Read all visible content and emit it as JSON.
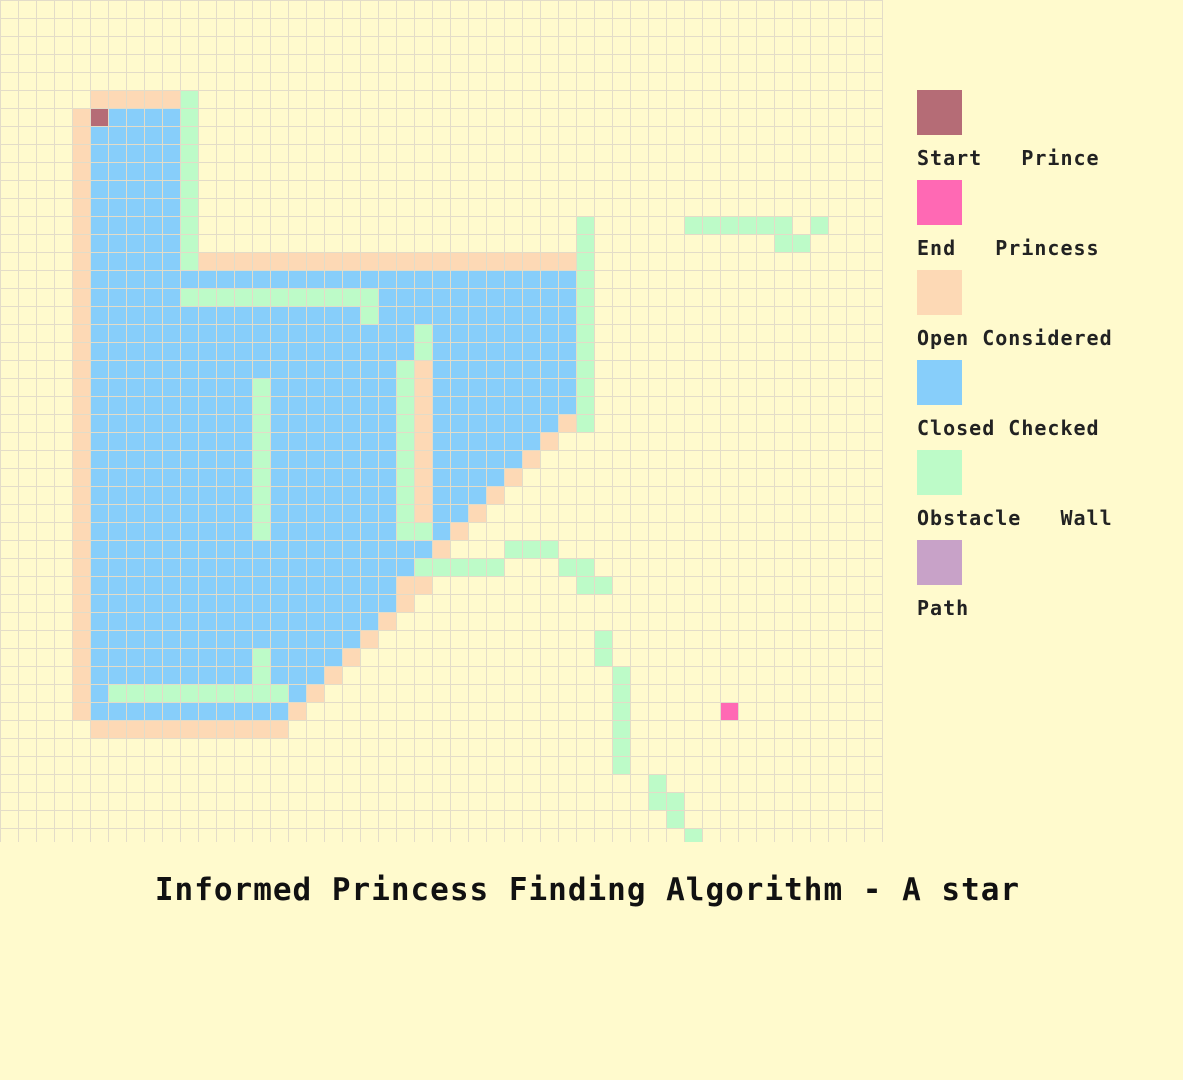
{
  "title": "Informed Princess Finding Algorithm - A star",
  "colors": {
    "background": "#fffacd",
    "grid_line": "#e3dcc8",
    "start": "#b56c76",
    "end": "#ff69b4",
    "open": "#fdd9b5",
    "closed": "#87cefa",
    "obstacle": "#bdfbc8",
    "path": "#c8a2c8"
  },
  "legend": [
    {
      "key": "start",
      "label": "Start   Prince"
    },
    {
      "key": "end",
      "label": "End   Princess"
    },
    {
      "key": "open",
      "label": "Open Considered"
    },
    {
      "key": "closed",
      "label": "Closed Checked"
    },
    {
      "key": "obstacle",
      "label": "Obstacle   Wall"
    },
    {
      "key": "path",
      "label": "Path"
    }
  ],
  "grid": {
    "cols": 49,
    "rows": 47,
    "start": [
      5,
      6
    ],
    "end": [
      40,
      39
    ],
    "obstacles": [
      [
        10,
        5
      ],
      [
        10,
        6
      ],
      [
        10,
        7
      ],
      [
        10,
        8
      ],
      [
        10,
        9
      ],
      [
        10,
        10
      ],
      [
        10,
        11
      ],
      [
        10,
        12
      ],
      [
        10,
        13
      ],
      [
        10,
        14
      ],
      [
        32,
        12
      ],
      [
        32,
        13
      ],
      [
        32,
        14
      ],
      [
        32,
        15
      ],
      [
        32,
        16
      ],
      [
        32,
        17
      ],
      [
        32,
        18
      ],
      [
        32,
        19
      ],
      [
        32,
        20
      ],
      [
        32,
        21
      ],
      [
        32,
        22
      ],
      [
        32,
        23
      ],
      [
        38,
        12
      ],
      [
        39,
        12
      ],
      [
        40,
        12
      ],
      [
        41,
        12
      ],
      [
        42,
        12
      ],
      [
        43,
        12
      ],
      [
        45,
        12
      ],
      [
        43,
        13
      ],
      [
        44,
        13
      ],
      [
        10,
        16
      ],
      [
        11,
        16
      ],
      [
        12,
        16
      ],
      [
        13,
        16
      ],
      [
        14,
        16
      ],
      [
        15,
        16
      ],
      [
        16,
        16
      ],
      [
        17,
        16
      ],
      [
        18,
        16
      ],
      [
        19,
        16
      ],
      [
        20,
        16
      ],
      [
        20,
        17
      ],
      [
        23,
        18
      ],
      [
        23,
        19
      ],
      [
        22,
        20
      ],
      [
        22,
        21
      ],
      [
        22,
        22
      ],
      [
        22,
        23
      ],
      [
        22,
        24
      ],
      [
        22,
        25
      ],
      [
        22,
        26
      ],
      [
        22,
        27
      ],
      [
        22,
        28
      ],
      [
        22,
        29
      ],
      [
        23,
        29
      ],
      [
        14,
        21
      ],
      [
        14,
        22
      ],
      [
        14,
        23
      ],
      [
        14,
        24
      ],
      [
        14,
        25
      ],
      [
        14,
        26
      ],
      [
        14,
        27
      ],
      [
        14,
        28
      ],
      [
        14,
        29
      ],
      [
        28,
        30
      ],
      [
        29,
        30
      ],
      [
        30,
        30
      ],
      [
        23,
        31
      ],
      [
        24,
        31
      ],
      [
        25,
        31
      ],
      [
        26,
        31
      ],
      [
        27,
        31
      ],
      [
        31,
        31
      ],
      [
        32,
        31
      ],
      [
        32,
        32
      ],
      [
        33,
        32
      ],
      [
        33,
        35
      ],
      [
        33,
        36
      ],
      [
        34,
        37
      ],
      [
        34,
        38
      ],
      [
        34,
        39
      ],
      [
        34,
        40
      ],
      [
        34,
        41
      ],
      [
        34,
        42
      ],
      [
        36,
        43
      ],
      [
        36,
        44
      ],
      [
        37,
        44
      ],
      [
        37,
        45
      ],
      [
        38,
        46
      ],
      [
        14,
        36
      ],
      [
        14,
        37
      ],
      [
        6,
        38
      ],
      [
        7,
        38
      ],
      [
        8,
        38
      ],
      [
        9,
        38
      ],
      [
        10,
        38
      ],
      [
        11,
        38
      ],
      [
        12,
        38
      ],
      [
        13,
        38
      ],
      [
        14,
        38
      ],
      [
        15,
        38
      ]
    ],
    "open": [
      [
        5,
        5
      ],
      [
        6,
        5
      ],
      [
        7,
        5
      ],
      [
        8,
        5
      ],
      [
        9,
        5
      ],
      [
        4,
        6
      ],
      [
        4,
        7
      ],
      [
        4,
        8
      ],
      [
        4,
        9
      ],
      [
        4,
        10
      ],
      [
        4,
        11
      ],
      [
        4,
        12
      ],
      [
        4,
        13
      ],
      [
        4,
        14
      ],
      [
        4,
        15
      ],
      [
        4,
        16
      ],
      [
        4,
        17
      ],
      [
        4,
        18
      ],
      [
        4,
        19
      ],
      [
        4,
        20
      ],
      [
        4,
        21
      ],
      [
        4,
        22
      ],
      [
        4,
        23
      ],
      [
        4,
        24
      ],
      [
        4,
        25
      ],
      [
        4,
        26
      ],
      [
        4,
        27
      ],
      [
        4,
        28
      ],
      [
        4,
        29
      ],
      [
        4,
        30
      ],
      [
        4,
        31
      ],
      [
        4,
        32
      ],
      [
        4,
        33
      ],
      [
        4,
        34
      ],
      [
        4,
        35
      ],
      [
        4,
        36
      ],
      [
        4,
        37
      ],
      [
        4,
        38
      ],
      [
        4,
        39
      ],
      [
        11,
        14
      ],
      [
        12,
        14
      ],
      [
        13,
        14
      ],
      [
        14,
        14
      ],
      [
        15,
        14
      ],
      [
        16,
        14
      ],
      [
        17,
        14
      ],
      [
        18,
        14
      ],
      [
        19,
        14
      ],
      [
        20,
        14
      ],
      [
        21,
        14
      ],
      [
        22,
        14
      ],
      [
        23,
        14
      ],
      [
        24,
        14
      ],
      [
        25,
        14
      ],
      [
        26,
        14
      ],
      [
        27,
        14
      ],
      [
        28,
        14
      ],
      [
        29,
        14
      ],
      [
        30,
        14
      ],
      [
        31,
        14
      ],
      [
        23,
        20
      ],
      [
        23,
        21
      ],
      [
        23,
        22
      ],
      [
        23,
        23
      ],
      [
        23,
        24
      ],
      [
        23,
        25
      ],
      [
        23,
        26
      ],
      [
        23,
        27
      ],
      [
        23,
        28
      ],
      [
        31,
        23
      ],
      [
        30,
        24
      ],
      [
        29,
        25
      ],
      [
        28,
        26
      ],
      [
        27,
        27
      ],
      [
        26,
        28
      ],
      [
        25,
        29
      ],
      [
        24,
        30
      ],
      [
        22,
        32
      ],
      [
        23,
        32
      ],
      [
        22,
        33
      ],
      [
        21,
        34
      ],
      [
        20,
        35
      ],
      [
        19,
        36
      ],
      [
        18,
        37
      ],
      [
        17,
        38
      ],
      [
        16,
        39
      ],
      [
        5,
        40
      ],
      [
        6,
        40
      ],
      [
        7,
        40
      ],
      [
        8,
        40
      ],
      [
        9,
        40
      ],
      [
        10,
        40
      ],
      [
        11,
        40
      ],
      [
        12,
        40
      ],
      [
        13,
        40
      ],
      [
        14,
        40
      ],
      [
        15,
        40
      ]
    ],
    "closed_rows": [
      [
        6,
        6,
        9
      ],
      [
        7,
        5,
        9
      ],
      [
        8,
        5,
        9
      ],
      [
        9,
        5,
        9
      ],
      [
        10,
        5,
        9
      ],
      [
        11,
        5,
        9
      ],
      [
        12,
        5,
        9
      ],
      [
        13,
        5,
        9
      ],
      [
        14,
        5,
        9
      ],
      [
        15,
        5,
        31
      ],
      [
        16,
        5,
        31
      ],
      [
        17,
        5,
        31
      ],
      [
        18,
        5,
        31
      ],
      [
        19,
        5,
        31
      ],
      [
        20,
        5,
        31
      ],
      [
        21,
        5,
        31
      ],
      [
        22,
        5,
        31
      ],
      [
        23,
        5,
        30
      ],
      [
        24,
        5,
        29
      ],
      [
        25,
        5,
        28
      ],
      [
        26,
        5,
        27
      ],
      [
        27,
        5,
        26
      ],
      [
        28,
        5,
        25
      ],
      [
        29,
        5,
        24
      ],
      [
        30,
        5,
        23
      ],
      [
        31,
        5,
        22
      ],
      [
        32,
        5,
        21
      ],
      [
        33,
        5,
        21
      ],
      [
        34,
        5,
        20
      ],
      [
        35,
        5,
        19
      ],
      [
        36,
        5,
        18
      ],
      [
        37,
        5,
        17
      ],
      [
        38,
        5,
        16
      ],
      [
        39,
        5,
        15
      ]
    ]
  }
}
